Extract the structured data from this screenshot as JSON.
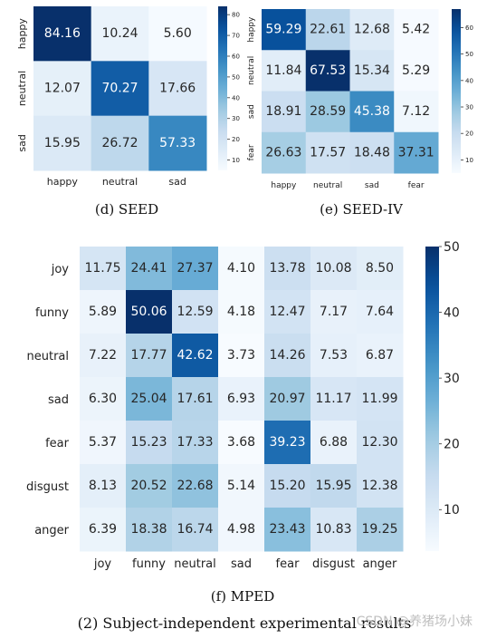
{
  "chart_data": [
    {
      "type": "heatmap",
      "caption": "(d) SEED",
      "rows": [
        "happy",
        "neutral",
        "sad"
      ],
      "cols": [
        "happy",
        "neutral",
        "sad"
      ],
      "values": [
        [
          84.16,
          10.24,
          5.6
        ],
        [
          12.07,
          70.27,
          17.66
        ],
        [
          15.95,
          26.72,
          57.33
        ]
      ],
      "colorbar": {
        "ticks": [
          80,
          70,
          60,
          50,
          40,
          30,
          20,
          10
        ],
        "range": [
          5,
          84
        ]
      }
    },
    {
      "type": "heatmap",
      "caption": "(e) SEED-IV",
      "rows": [
        "happy",
        "neutral",
        "sad",
        "fear"
      ],
      "cols": [
        "happy",
        "neutral",
        "sad",
        "fear"
      ],
      "values": [
        [
          59.29,
          22.61,
          12.68,
          5.42
        ],
        [
          11.84,
          67.53,
          15.34,
          5.29
        ],
        [
          18.91,
          28.59,
          45.38,
          7.12
        ],
        [
          26.63,
          17.57,
          18.48,
          37.31
        ]
      ],
      "colorbar": {
        "ticks": [
          60,
          50,
          40,
          30,
          20,
          10
        ],
        "range": [
          5,
          67
        ]
      }
    },
    {
      "type": "heatmap",
      "caption": "(f) MPED",
      "rows": [
        "joy",
        "funny",
        "neutral",
        "sad",
        "fear",
        "disgust",
        "anger"
      ],
      "cols": [
        "joy",
        "funny",
        "neutral",
        "sad",
        "fear",
        "disgust",
        "anger"
      ],
      "values": [
        [
          11.75,
          24.41,
          27.37,
          4.1,
          13.78,
          10.08,
          8.5
        ],
        [
          5.89,
          50.06,
          12.59,
          4.18,
          12.47,
          7.17,
          7.64
        ],
        [
          7.22,
          17.77,
          42.62,
          3.73,
          14.26,
          7.53,
          6.87
        ],
        [
          6.3,
          25.04,
          17.61,
          6.93,
          20.97,
          11.17,
          11.99
        ],
        [
          5.37,
          15.23,
          17.33,
          3.68,
          39.23,
          6.88,
          12.3
        ],
        [
          8.13,
          20.52,
          22.68,
          5.14,
          15.2,
          15.95,
          12.38
        ],
        [
          6.39,
          18.38,
          16.74,
          4.98,
          23.43,
          10.83,
          19.25
        ]
      ],
      "colorbar": {
        "ticks": [
          50,
          40,
          30,
          20,
          10
        ],
        "range": [
          3.7,
          50
        ]
      }
    }
  ],
  "footer_caption": "(2) Subject-independent experimental results",
  "watermark": "CSDN @养猪场小妹"
}
